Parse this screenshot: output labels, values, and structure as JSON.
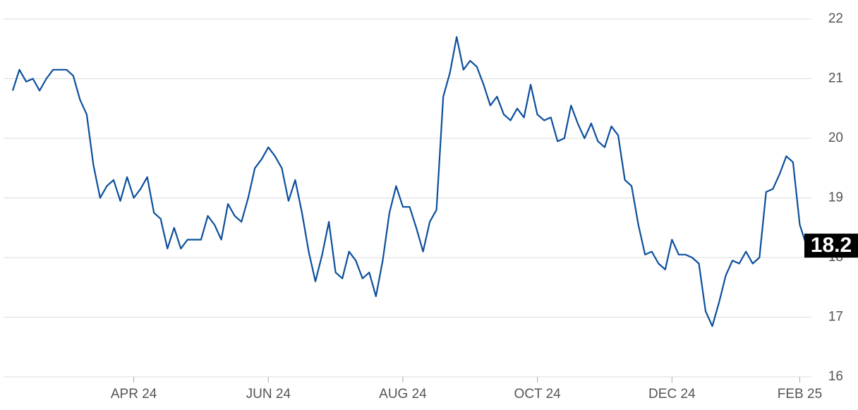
{
  "chart_data": {
    "type": "line",
    "categories": [
      null,
      null,
      null,
      null,
      null,
      null,
      null,
      null,
      null,
      null,
      null,
      null,
      null,
      null,
      null,
      null,
      null,
      null,
      "APR 24",
      null,
      null,
      null,
      null,
      null,
      null,
      null,
      null,
      null,
      null,
      null,
      null,
      null,
      null,
      null,
      null,
      null,
      null,
      null,
      "JUN 24",
      null,
      null,
      null,
      null,
      null,
      null,
      null,
      null,
      null,
      null,
      null,
      null,
      null,
      null,
      null,
      null,
      null,
      null,
      null,
      "AUG 24",
      null,
      null,
      null,
      null,
      null,
      null,
      null,
      null,
      null,
      null,
      null,
      null,
      null,
      null,
      null,
      null,
      null,
      null,
      null,
      "OCT 24",
      null,
      null,
      null,
      null,
      null,
      null,
      null,
      null,
      null,
      null,
      null,
      null,
      null,
      null,
      null,
      null,
      null,
      null,
      null,
      "DEC 24",
      null,
      null,
      null,
      null,
      null,
      null,
      null,
      null,
      null,
      null,
      null,
      null,
      null,
      null,
      null,
      null,
      null,
      null,
      "FEB 25",
      null
    ],
    "values": [
      20.8,
      21.15,
      20.95,
      21.0,
      20.8,
      21.0,
      21.15,
      21.15,
      21.15,
      21.05,
      20.65,
      20.4,
      19.55,
      19.0,
      19.2,
      19.3,
      18.95,
      19.35,
      19.0,
      19.15,
      19.35,
      18.75,
      18.65,
      18.15,
      18.5,
      18.15,
      18.3,
      18.3,
      18.3,
      18.7,
      18.55,
      18.3,
      18.9,
      18.7,
      18.6,
      19.0,
      19.5,
      19.65,
      19.85,
      19.7,
      19.5,
      18.95,
      19.3,
      18.75,
      18.1,
      17.6,
      18.05,
      18.6,
      17.75,
      17.65,
      18.1,
      17.95,
      17.65,
      17.75,
      17.35,
      17.95,
      18.75,
      19.2,
      18.85,
      18.85,
      18.5,
      18.1,
      18.6,
      18.8,
      20.7,
      21.1,
      21.7,
      21.15,
      21.3,
      21.2,
      20.9,
      20.55,
      20.7,
      20.4,
      20.3,
      20.5,
      20.35,
      20.9,
      20.4,
      20.3,
      20.35,
      19.95,
      20.0,
      20.55,
      20.25,
      20.0,
      20.25,
      19.95,
      19.85,
      20.2,
      20.05,
      19.3,
      19.2,
      18.55,
      18.05,
      18.1,
      17.9,
      17.8,
      18.3,
      18.05,
      18.05,
      18.0,
      17.9,
      17.1,
      16.85,
      17.25,
      17.7,
      17.95,
      17.9,
      18.1,
      17.9,
      18.0,
      19.1,
      19.15,
      19.4,
      19.7,
      19.6,
      18.55,
      18.2
    ],
    "color": "#0b4f9c",
    "ylim": [
      16,
      22
    ],
    "yticks": [
      16,
      17,
      18,
      19,
      20,
      21,
      22
    ],
    "grid": true
  }
}
